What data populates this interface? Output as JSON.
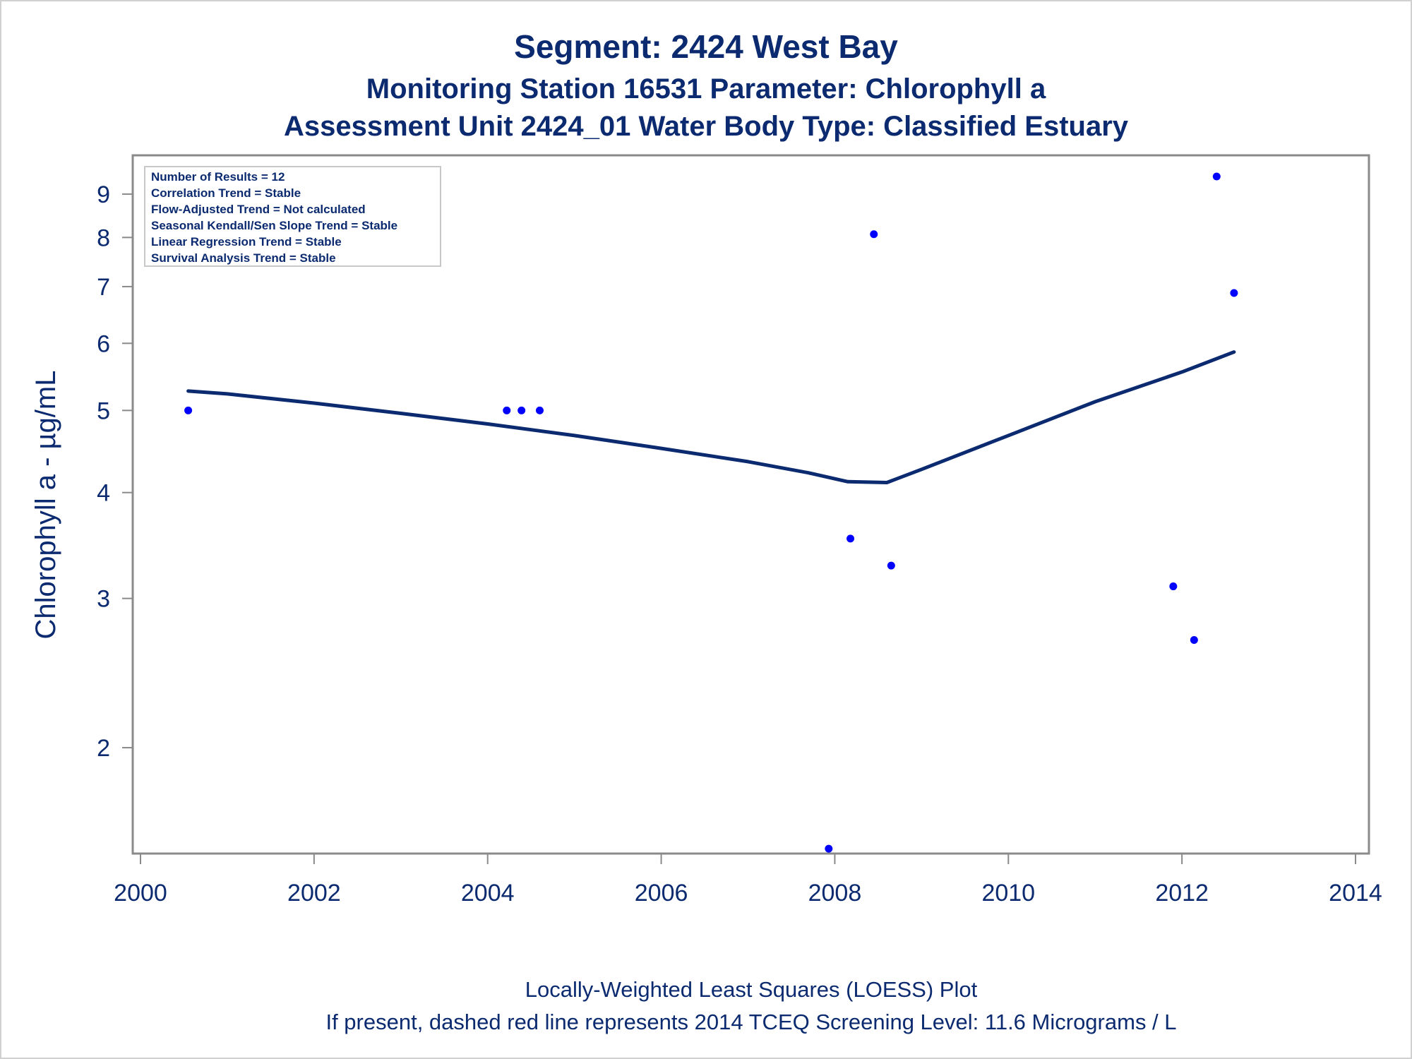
{
  "chart_data": {
    "type": "scatter",
    "title": "Segment: 2424  West Bay",
    "subtitle": "Monitoring Station 16531 Parameter: Chlorophyll a",
    "subtitle2": "Assessment Unit 2424_01   Water Body Type: Classified Estuary",
    "xlabel": "",
    "ylabel": "Chlorophyll a -  µg/mL",
    "y_scale": "log",
    "xlim": [
      2000,
      2014
    ],
    "ylim": [
      1.5,
      10
    ],
    "x_ticks": [
      "2000",
      "2002",
      "2004",
      "2006",
      "2008",
      "2010",
      "2012",
      "2014"
    ],
    "y_ticks": [
      "2",
      "3",
      "4",
      "5",
      "6",
      "7",
      "8",
      "9"
    ],
    "grid": false,
    "colors": {
      "points": "#0000ff",
      "loess": "#0b2a6f",
      "text": "#0b2a6f",
      "axis": "#8a8a8a"
    },
    "series": [
      {
        "kind": "points",
        "points": [
          {
            "x": 2000.55,
            "y": 5.0
          },
          {
            "x": 2004.22,
            "y": 5.0
          },
          {
            "x": 2004.39,
            "y": 5.0
          },
          {
            "x": 2004.6,
            "y": 5.0
          },
          {
            "x": 2007.93,
            "y": 1.52
          },
          {
            "x": 2008.18,
            "y": 3.53
          },
          {
            "x": 2008.45,
            "y": 8.07
          },
          {
            "x": 2008.65,
            "y": 3.28
          },
          {
            "x": 2011.9,
            "y": 3.1
          },
          {
            "x": 2012.14,
            "y": 2.68
          },
          {
            "x": 2012.4,
            "y": 9.44
          },
          {
            "x": 2012.6,
            "y": 6.88
          }
        ]
      },
      {
        "kind": "line",
        "points": [
          {
            "x": 2000.55,
            "y": 5.27
          },
          {
            "x": 2001.0,
            "y": 5.23
          },
          {
            "x": 2002.0,
            "y": 5.1
          },
          {
            "x": 2003.0,
            "y": 4.96
          },
          {
            "x": 2004.0,
            "y": 4.82
          },
          {
            "x": 2005.0,
            "y": 4.67
          },
          {
            "x": 2006.0,
            "y": 4.51
          },
          {
            "x": 2007.0,
            "y": 4.35
          },
          {
            "x": 2007.7,
            "y": 4.22
          },
          {
            "x": 2008.15,
            "y": 4.12
          },
          {
            "x": 2008.6,
            "y": 4.11
          },
          {
            "x": 2009.0,
            "y": 4.26
          },
          {
            "x": 2010.0,
            "y": 4.67
          },
          {
            "x": 2011.0,
            "y": 5.12
          },
          {
            "x": 2012.0,
            "y": 5.55
          },
          {
            "x": 2012.6,
            "y": 5.86
          }
        ]
      }
    ],
    "inset_box": [
      "Number of Results = 12",
      "Correlation Trend = Stable",
      "Flow-Adjusted Trend = Not calculated",
      "Seasonal Kendall/Sen Slope Trend = Stable",
      "Linear Regression Trend = Stable",
      "Survival Analysis Trend = Stable"
    ],
    "footnotes": [
      "Locally-Weighted Least Squares (LOESS) Plot",
      "If present, dashed red line represents 2014 TCEQ Screening Level: 11.6 Micrograms / L"
    ]
  }
}
